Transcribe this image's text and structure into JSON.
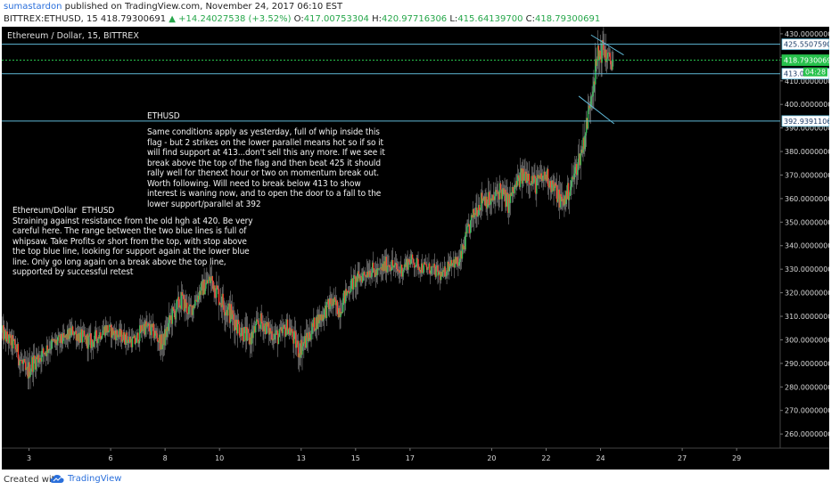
{
  "header": {
    "author": "sumastardon",
    "published": " published on TradingView.com, November 24, 2017 06:10 EST",
    "symbol": "BITTREX:ETHUSD, 15",
    "price": "418.79300691",
    "change": "+14.24027538 (+3.52%)",
    "o_label": "O:",
    "o_value": "417.00753304",
    "h_label": "H:",
    "h_value": "420.97716306",
    "l_label": "L:",
    "l_value": "415.64139700",
    "c_label": "C:",
    "c_value": "418.79300691"
  },
  "footer": {
    "created_with": "Created with",
    "brand": "TradingView"
  },
  "notes": {
    "ethusd_title": "ETHUSD",
    "ethusd_body": "Same conditions apply as yesterday, full of whip inside this\nflag - but 2 strikes on the lower parallel means hot so if so it\nwill find support at 413...don't sell this any more. If we see it\nbreak above the top of the flag and then beat 425 it should\nrally well for thenext hour or two on momentum break out.\nWorth following. Will need to break below 413 to show\ninterest is waning now, and to open the door to a fall to the\nlower support/parallel at 392",
    "left_note": "Ethereum/Dollar  ETHUSD\nStraining against resistance from the old hgh at 420. Be very\ncareful here. The range between the two blue lines is full of\nwhipsaw. Take Profits or short from the top, with stop above\nthe top blue line, looking for support again at the lower blue\nline. Only go long again on a break above the top line,\nsupported by successful retest"
  },
  "chart_data": {
    "type": "candlestick",
    "title": "Ethereum / Dollar, 15, BITTREX",
    "ylim": [
      254,
      433
    ],
    "y_ticks": [
      "430.00000000",
      "420.00000000",
      "410.00000000",
      "400.00000000",
      "390.00000000",
      "380.00000000",
      "370.00000000",
      "360.00000000",
      "350.00000000",
      "340.00000000",
      "330.00000000",
      "320.00000000",
      "310.00000000",
      "300.00000000",
      "290.00000000",
      "280.00000000",
      "270.00000000",
      "260.00000000"
    ],
    "y_tick_values": [
      430,
      420,
      410,
      400,
      390,
      380,
      370,
      360,
      350,
      340,
      330,
      320,
      310,
      300,
      290,
      280,
      270,
      260
    ],
    "x_ticks": [
      "3",
      "6",
      "8",
      "10",
      "13",
      "15",
      "17",
      "20",
      "22",
      "24",
      "27",
      "29"
    ],
    "x_tick_days": [
      3,
      6,
      8,
      10,
      13,
      15,
      17,
      20,
      22,
      24,
      27,
      29
    ],
    "x_range_days": [
      2.0,
      30.6
    ],
    "h_levels": [
      {
        "value": 425.55075903,
        "label": "425.55075903",
        "color": "#5fb8d6"
      },
      {
        "value": 418.79300691,
        "label": "418.79300691",
        "color": "#27c24c"
      },
      {
        "value": 413.05931,
        "label": "413.059",
        "color": "#5fb8d6"
      },
      {
        "value": 392.9391106,
        "label": "392.93911060",
        "color": "#5fb8d6"
      }
    ],
    "countdown": "04:28",
    "flag_lines": [
      {
        "day_start": 23.65,
        "v_start": 429.5,
        "day_end": 24.85,
        "v_end": 421.0
      },
      {
        "day_start": 23.2,
        "v_start": 403.5,
        "day_end": 24.5,
        "v_end": 391.8
      }
    ],
    "price_path_days": [
      2.0,
      2.5,
      2.9,
      3.1,
      3.4,
      3.8,
      4.3,
      4.6,
      4.9,
      5.3,
      5.8,
      6.1,
      6.5,
      6.9,
      7.2,
      7.6,
      7.9,
      8.2,
      8.6,
      8.9,
      9.3,
      9.7,
      10.0,
      10.4,
      10.8,
      11.1,
      11.5,
      11.9,
      12.2,
      12.5,
      12.9,
      13.2,
      13.5,
      13.8,
      14.1,
      14.4,
      14.8,
      15.1,
      15.5,
      15.8,
      16.2,
      16.6,
      17.0,
      17.4,
      17.8,
      18.2,
      18.5,
      18.8,
      19.1,
      19.4,
      19.7,
      20.0,
      20.3,
      20.6,
      21.0,
      21.3,
      21.6,
      22.0,
      22.3,
      22.6,
      22.9,
      23.1,
      23.3,
      23.5,
      23.7,
      23.9,
      24.1,
      24.3,
      24.5
    ],
    "price_path": [
      303,
      297,
      285,
      290,
      293,
      298,
      300,
      304,
      301,
      299,
      305,
      303,
      301,
      299,
      306,
      303,
      298,
      309,
      317,
      312,
      321,
      326,
      318,
      311,
      304,
      300,
      308,
      303,
      301,
      306,
      296,
      300,
      307,
      311,
      316,
      313,
      323,
      326,
      330,
      328,
      333,
      329,
      334,
      331,
      330,
      327,
      334,
      332,
      345,
      355,
      361,
      358,
      364,
      358,
      368,
      371,
      366,
      370,
      364,
      358,
      365,
      373,
      380,
      392,
      408,
      420,
      424,
      418,
      419
    ],
    "volatility": [
      6,
      6,
      8,
      7,
      6,
      6,
      5,
      5,
      6,
      6,
      5,
      5,
      5,
      5,
      6,
      6,
      6,
      7,
      7,
      6,
      6,
      7,
      8,
      8,
      7,
      7,
      6,
      6,
      7,
      6,
      8,
      7,
      6,
      6,
      6,
      7,
      6,
      6,
      6,
      6,
      6,
      6,
      5,
      5,
      5,
      5,
      5,
      6,
      6,
      7,
      7,
      7,
      7,
      7,
      7,
      7,
      7,
      7,
      7,
      7,
      7,
      7,
      7,
      8,
      8,
      9,
      8,
      8,
      6
    ]
  }
}
